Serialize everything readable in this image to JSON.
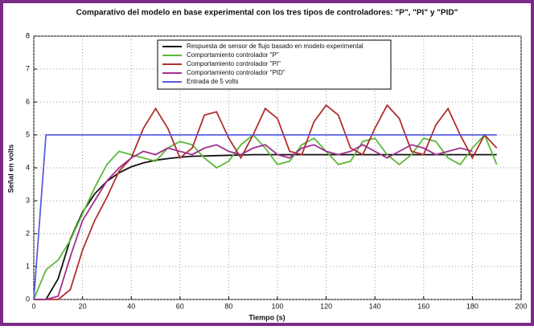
{
  "chart_data": {
    "type": "line",
    "title": "Comparativo del modelo en base experimental con los tres tipos de controladores: \"P\", \"PI\" y \"PID\"",
    "x_label": "Tiempo (s)",
    "y_label": "Señal en volts",
    "x": [
      0,
      5,
      10,
      15,
      20,
      25,
      30,
      35,
      40,
      45,
      50,
      55,
      60,
      65,
      70,
      75,
      80,
      85,
      90,
      95,
      100,
      105,
      110,
      115,
      120,
      125,
      130,
      135,
      140,
      145,
      150,
      155,
      160,
      165,
      170,
      175,
      180,
      185,
      190
    ],
    "series": [
      {
        "name": "Respuesta de sensor de flujo basado en modelo experimental",
        "color": "#111111",
        "values": [
          0,
          0,
          0.63,
          1.83,
          2.65,
          3.21,
          3.59,
          3.85,
          4.03,
          4.15,
          4.23,
          4.28,
          4.32,
          4.35,
          4.36,
          4.37,
          4.38,
          4.39,
          4.4,
          4.4,
          4.4,
          4.4,
          4.4,
          4.4,
          4.4,
          4.4,
          4.4,
          4.4,
          4.4,
          4.4,
          4.4,
          4.4,
          4.4,
          4.4,
          4.4,
          4.4,
          4.4,
          4.4,
          4.4
        ]
      },
      {
        "name": "Comportamiento controlador \"P\"",
        "color": "#5cb83a",
        "values": [
          0,
          0.9,
          1.2,
          1.8,
          2.6,
          3.4,
          4.1,
          4.5,
          4.4,
          4.3,
          4.2,
          4.6,
          4.8,
          4.7,
          4.3,
          4.0,
          4.2,
          4.7,
          5.0,
          4.6,
          4.1,
          4.2,
          4.7,
          4.9,
          4.5,
          4.1,
          4.2,
          4.8,
          4.9,
          4.4,
          4.1,
          4.4,
          4.9,
          4.8,
          4.3,
          4.1,
          4.6,
          5.0,
          4.1
        ]
      },
      {
        "name": "Comportamiento controlador \"PI\"",
        "color": "#b0302c",
        "values": [
          0,
          0,
          0,
          0.3,
          1.5,
          2.4,
          3.1,
          3.9,
          4.3,
          5.2,
          5.8,
          5.2,
          4.3,
          4.6,
          5.6,
          5.7,
          4.9,
          4.3,
          5.0,
          5.8,
          5.5,
          4.5,
          4.4,
          5.4,
          5.9,
          5.6,
          4.6,
          4.4,
          5.2,
          5.9,
          5.5,
          4.5,
          4.4,
          5.3,
          5.8,
          5.0,
          4.3,
          5.0,
          4.6
        ]
      },
      {
        "name": "Comportamiento controlador \"PID\"",
        "color": "#a0308e",
        "values": [
          0,
          0,
          0.1,
          1.3,
          2.4,
          3.0,
          3.6,
          4.0,
          4.3,
          4.5,
          4.4,
          4.6,
          4.5,
          4.4,
          4.6,
          4.7,
          4.5,
          4.4,
          4.6,
          4.7,
          4.4,
          4.3,
          4.6,
          4.7,
          4.5,
          4.4,
          4.5,
          4.7,
          4.5,
          4.3,
          4.5,
          4.7,
          4.6,
          4.4,
          4.5,
          4.6,
          4.5,
          null,
          null
        ]
      },
      {
        "name": "Entrada de 5 volts",
        "color": "#5a5ee0",
        "values": [
          0,
          5,
          5,
          5,
          5,
          5,
          5,
          5,
          5,
          5,
          5,
          5,
          5,
          5,
          5,
          5,
          5,
          5,
          5,
          5,
          5,
          5,
          5,
          5,
          5,
          5,
          5,
          5,
          5,
          5,
          5,
          5,
          5,
          5,
          5,
          5,
          5,
          5,
          5
        ]
      }
    ],
    "xlim": [
      0,
      200
    ],
    "xticks": [
      0,
      20,
      40,
      60,
      80,
      100,
      120,
      140,
      160,
      180,
      200
    ],
    "ylim": [
      0,
      8
    ],
    "yticks": [
      0,
      1,
      2,
      3,
      4,
      5,
      6,
      7,
      8
    ],
    "grid": true,
    "legend": "top"
  }
}
